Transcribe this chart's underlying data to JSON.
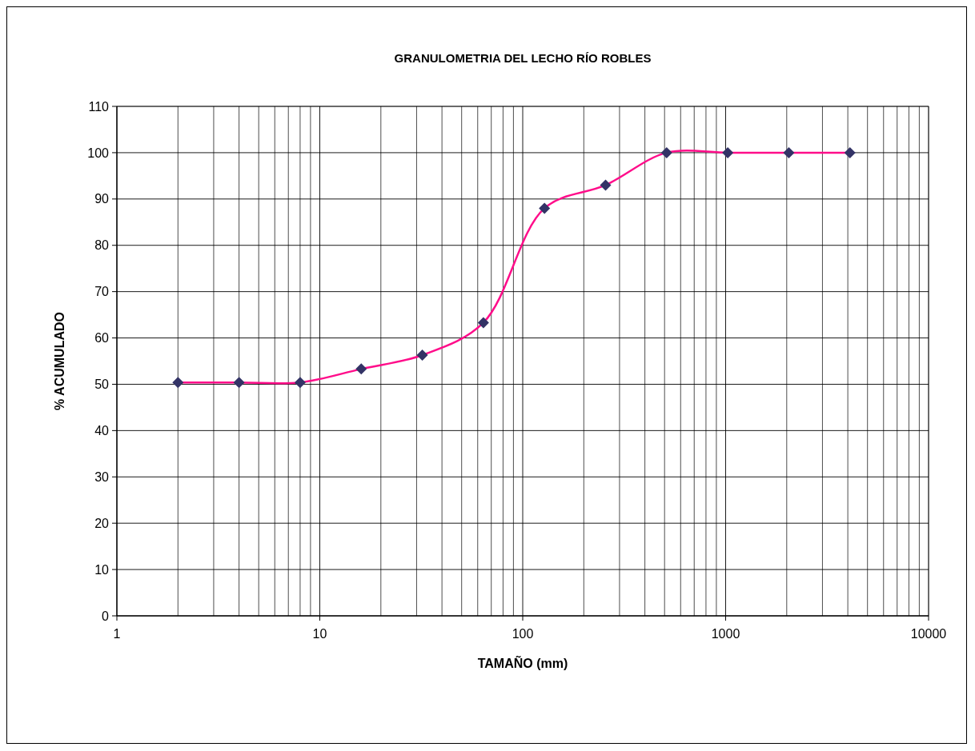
{
  "chart_data": {
    "type": "line",
    "title": "GRANULOMETRIA DEL LECHO RÍO ROBLES",
    "xlabel": "TAMAÑO (mm)",
    "ylabel": "% ACUMULADO",
    "x": [
      2,
      4,
      8,
      16,
      32,
      64,
      128,
      256,
      512,
      1024,
      2048,
      4096
    ],
    "series": [
      {
        "color": "#ff0d8a",
        "values": [
          50.4,
          50.4,
          50.4,
          53.3,
          56.3,
          63.3,
          88,
          93,
          100,
          100,
          100,
          100
        ]
      }
    ],
    "log": "x",
    "xlim": [
      1,
      10000
    ],
    "xticks": [
      1,
      10,
      100,
      1000,
      10000
    ],
    "ylim": [
      0,
      110
    ],
    "yticks": [
      0,
      10,
      20,
      30,
      40,
      50,
      60,
      70,
      80,
      90,
      100,
      110
    ],
    "grid": true,
    "marker": "diamond",
    "line_style": "solid"
  }
}
